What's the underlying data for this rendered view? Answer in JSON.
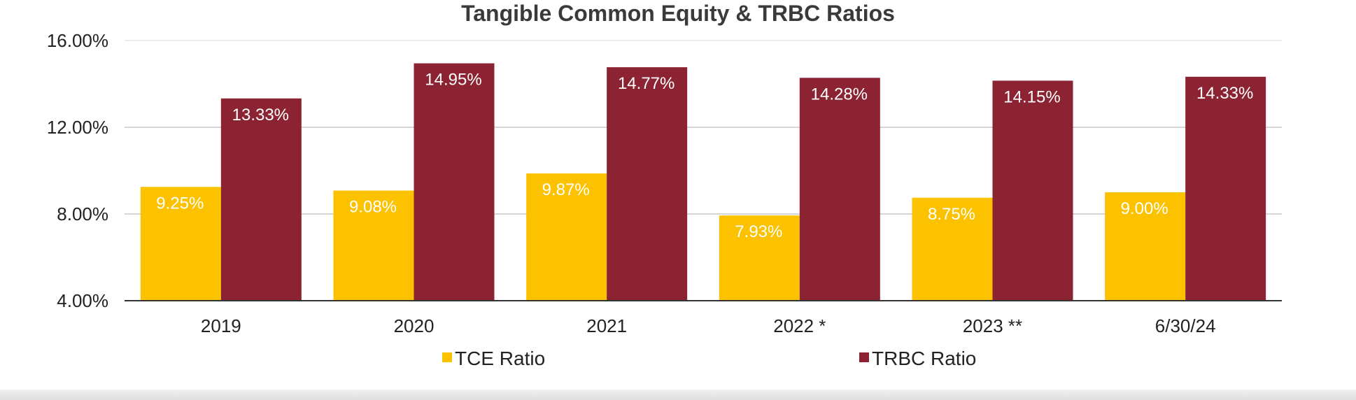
{
  "colors": {
    "tce": "#FCC200",
    "trbc": "#8B2332",
    "grid": "#C8C8C8",
    "axis": "#333333"
  },
  "chart_data": {
    "type": "bar",
    "title": "Tangible Common Equity & TRBC Ratios",
    "xlabel": "",
    "ylabel": "",
    "categories": [
      "2019",
      "2020",
      "2021",
      "2022 *",
      "2023 **",
      "6/30/24"
    ],
    "series": [
      {
        "name": "TCE Ratio",
        "color": "#FCC200",
        "values": [
          9.25,
          9.08,
          9.87,
          7.93,
          8.75,
          9.0
        ],
        "labels": [
          "9.25%",
          "9.08%",
          "9.87%",
          "7.93%",
          "8.75%",
          "9.00%"
        ]
      },
      {
        "name": "TRBC Ratio",
        "color": "#8B2332",
        "values": [
          13.33,
          14.95,
          14.77,
          14.28,
          14.15,
          14.33
        ],
        "labels": [
          "13.33%",
          "14.95%",
          "14.77%",
          "14.28%",
          "14.15%",
          "14.33%"
        ]
      }
    ],
    "ylim": [
      4,
      16
    ],
    "yticks": [
      4,
      8,
      12,
      16
    ],
    "ytick_labels": [
      "4.00%",
      "8.00%",
      "12.00%",
      "16.00%"
    ],
    "grid": true,
    "legend_position": "bottom"
  }
}
